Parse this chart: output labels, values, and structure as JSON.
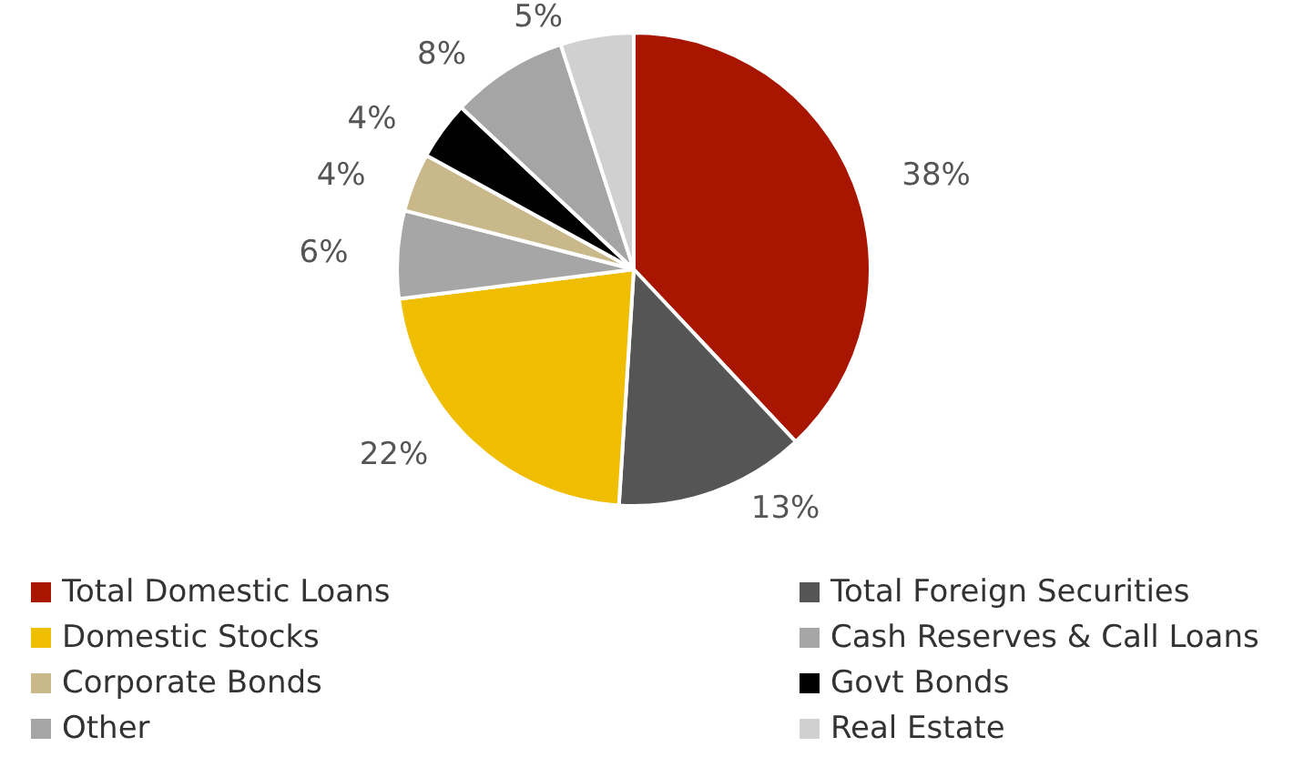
{
  "chart_data": {
    "type": "pie",
    "categories": [
      "Total Domestic Loans",
      "Total Foreign Securities",
      "Domestic Stocks",
      "Cash Reserves & Call Loans",
      "Corporate Bonds",
      "Govt Bonds",
      "Other",
      "Real Estate"
    ],
    "values": [
      38,
      13,
      22,
      6,
      4,
      4,
      8,
      5
    ],
    "value_labels": [
      "38%",
      "13%",
      "22%",
      "6%",
      "4%",
      "4%",
      "8%",
      "5%"
    ],
    "colors": [
      "#a81500",
      "#555555",
      "#f0be00",
      "#a6a6a6",
      "#c8b88a",
      "#000000",
      "#a5a5a5",
      "#d0d0d0"
    ],
    "legend": "bottom"
  }
}
